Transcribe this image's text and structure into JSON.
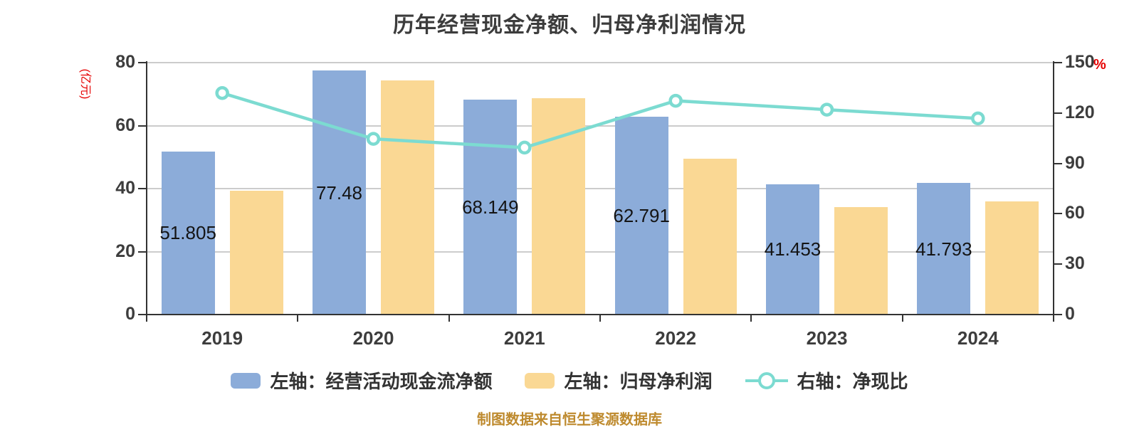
{
  "title": "历年经营现金净额、归母净利润情况",
  "footer": "制图数据来自恒生聚源数据库",
  "chart_data": {
    "type": "bar+line",
    "categories": [
      "2019",
      "2020",
      "2021",
      "2022",
      "2023",
      "2024"
    ],
    "series": [
      {
        "name": "左轴：经营活动现金流净额",
        "type": "bar",
        "axis": "left",
        "color": "#8cacd9",
        "values": [
          51.805,
          77.48,
          68.149,
          62.791,
          41.453,
          41.793
        ],
        "data_labels": [
          "51.805",
          "77.48",
          "68.149",
          "62.791",
          "41.453",
          "41.793"
        ]
      },
      {
        "name": "左轴：归母净利润",
        "type": "bar",
        "axis": "left",
        "color": "#fad894",
        "values": [
          39.4,
          74.3,
          68.6,
          49.4,
          34.1,
          35.9
        ]
      },
      {
        "name": "右轴：净现比",
        "type": "line",
        "axis": "right",
        "color": "#7cdbd1",
        "marker": "circle-white-fill",
        "values": [
          131.9,
          104.6,
          99.4,
          127.3,
          122.0,
          116.8
        ]
      }
    ],
    "left_axis": {
      "unit": "(亿元)",
      "unit_color": "#e60000",
      "min": 0,
      "max": 80,
      "ticks": [
        0,
        20,
        40,
        60,
        80
      ]
    },
    "right_axis": {
      "unit": "%",
      "unit_color": "#e60000",
      "min": 0,
      "max": 150,
      "ticks": [
        0,
        30,
        60,
        90,
        120,
        150
      ]
    },
    "x_axis": {
      "labels": [
        "2019",
        "2020",
        "2021",
        "2022",
        "2023",
        "2024"
      ]
    },
    "grid": {
      "horizontal_lines": true,
      "color": "#cccccc",
      "behind_bars": true
    },
    "legend_position": "bottom"
  }
}
